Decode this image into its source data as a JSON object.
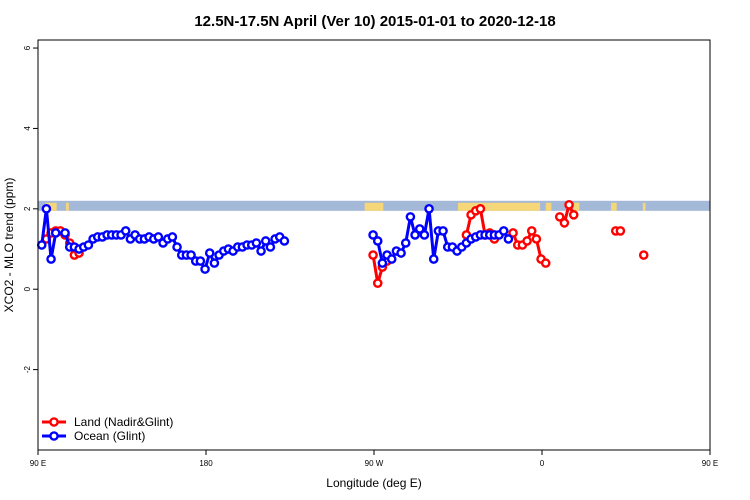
{
  "chart_data": {
    "type": "line",
    "title": "12.5N-17.5N April (Ver 10)   2015-01-01 to 2020-12-18",
    "xlabel": "Longitude (deg E)",
    "ylabel": "XCO2 - MLO trend (ppm)",
    "xlim": [
      90,
      450
    ],
    "ylim": [
      -4,
      6.2
    ],
    "x_ticks": [
      {
        "value": 90,
        "label": "90 E"
      },
      {
        "value": 180,
        "label": "180"
      },
      {
        "value": 270,
        "label": "90 W"
      },
      {
        "value": 360,
        "label": "0"
      },
      {
        "value": 450,
        "label": "90 E"
      },
      {
        "value": 540,
        "label": "180"
      }
    ],
    "y_ticks": [
      {
        "value": -2,
        "label": "-2"
      },
      {
        "value": 0,
        "label": "0"
      },
      {
        "value": 2,
        "label": "2"
      },
      {
        "value": 4,
        "label": "4"
      },
      {
        "value": 6,
        "label": "6"
      }
    ],
    "land_band": {
      "ymin": 1.95,
      "ymax": 2.2,
      "ocean_color": "#a4b8d8",
      "land_color": "#f5d77a"
    },
    "legend": {
      "position": "bottom-left"
    },
    "series": [
      {
        "name": "Land (Nadir&Glint)",
        "color": "#ff0000",
        "segments": [
          [
            [
              94.5,
              1.25
            ],
            [
              97,
              1.4
            ],
            [
              99.5,
              1.45
            ],
            [
              102,
              1.45
            ],
            [
              104.5,
              1.35
            ],
            [
              107,
              1.15
            ],
            [
              109.5,
              0.85
            ],
            [
              112,
              0.9
            ]
          ],
          [
            [
              269.5,
              0.85
            ],
            [
              272,
              0.15
            ],
            [
              274.5,
              0.55
            ],
            [
              277,
              0.7
            ]
          ],
          [
            [
              319.5,
              1.35
            ],
            [
              322,
              1.85
            ],
            [
              324.5,
              1.95
            ],
            [
              327,
              2.0
            ],
            [
              329.5,
              1.35
            ],
            [
              332,
              1.4
            ],
            [
              334.5,
              1.25
            ]
          ],
          [
            [
              344.5,
              1.4
            ],
            [
              347,
              1.1
            ],
            [
              349.5,
              1.1
            ],
            [
              352,
              1.2
            ],
            [
              354.5,
              1.45
            ],
            [
              357,
              1.25
            ],
            [
              359.5,
              0.75
            ],
            [
              362,
              0.65
            ]
          ],
          [
            [
              369.5,
              1.8
            ],
            [
              372,
              1.65
            ],
            [
              374.5,
              2.1
            ],
            [
              377,
              1.85
            ]
          ],
          [
            [
              399.5,
              1.45
            ],
            [
              402,
              1.45
            ]
          ],
          [
            [
              414.5,
              0.85
            ]
          ]
        ]
      },
      {
        "name": "Ocean (Glint)",
        "color": "#0000ff",
        "segments": [
          [
            [
              92,
              1.1
            ],
            [
              94.5,
              2.0
            ],
            [
              97,
              0.75
            ],
            [
              99.5,
              1.4
            ],
            [
              104.5,
              1.4
            ],
            [
              107,
              1.05
            ],
            [
              109.5,
              1.05
            ],
            [
              112,
              1.0
            ],
            [
              114.5,
              1.05
            ],
            [
              117,
              1.1
            ],
            [
              119.5,
              1.25
            ],
            [
              122,
              1.3
            ],
            [
              124.5,
              1.3
            ],
            [
              127,
              1.35
            ],
            [
              129.5,
              1.35
            ],
            [
              132,
              1.35
            ],
            [
              134.5,
              1.35
            ],
            [
              137,
              1.45
            ],
            [
              139.5,
              1.25
            ],
            [
              142,
              1.35
            ],
            [
              144.5,
              1.25
            ],
            [
              147,
              1.25
            ],
            [
              149.5,
              1.3
            ],
            [
              152,
              1.25
            ],
            [
              154.5,
              1.3
            ],
            [
              157,
              1.15
            ],
            [
              159.5,
              1.25
            ],
            [
              162,
              1.3
            ],
            [
              164.5,
              1.05
            ],
            [
              167,
              0.85
            ],
            [
              169.5,
              0.85
            ],
            [
              172,
              0.85
            ],
            [
              174.5,
              0.7
            ],
            [
              177,
              0.7
            ],
            [
              179.5,
              0.5
            ],
            [
              182,
              0.9
            ],
            [
              184.5,
              0.65
            ],
            [
              187,
              0.85
            ],
            [
              189.5,
              0.95
            ],
            [
              192,
              1.0
            ],
            [
              194.5,
              0.95
            ],
            [
              197,
              1.05
            ],
            [
              199.5,
              1.05
            ],
            [
              202,
              1.1
            ],
            [
              204.5,
              1.1
            ],
            [
              207,
              1.15
            ],
            [
              209.5,
              0.95
            ],
            [
              212,
              1.2
            ],
            [
              214.5,
              1.05
            ],
            [
              217,
              1.25
            ],
            [
              219.5,
              1.3
            ],
            [
              222,
              1.2
            ]
          ],
          [
            [
              269.5,
              1.35
            ],
            [
              272,
              1.2
            ],
            [
              274.5,
              0.65
            ],
            [
              277,
              0.85
            ],
            [
              279.5,
              0.75
            ],
            [
              282,
              0.95
            ],
            [
              284.5,
              0.9
            ],
            [
              287,
              1.15
            ],
            [
              289.5,
              1.8
            ],
            [
              292,
              1.35
            ],
            [
              294.5,
              1.5
            ],
            [
              297,
              1.35
            ],
            [
              299.5,
              2.0
            ],
            [
              302,
              0.75
            ],
            [
              304.5,
              1.45
            ],
            [
              307,
              1.45
            ],
            [
              309.5,
              1.05
            ],
            [
              312,
              1.05
            ],
            [
              314.5,
              0.95
            ],
            [
              317,
              1.05
            ],
            [
              319.5,
              1.15
            ],
            [
              322,
              1.25
            ],
            [
              324.5,
              1.3
            ],
            [
              327,
              1.35
            ],
            [
              329.5,
              1.35
            ],
            [
              332,
              1.35
            ],
            [
              334.5,
              1.35
            ],
            [
              337,
              1.35
            ],
            [
              339.5,
              1.45
            ],
            [
              342,
              1.25
            ]
          ]
        ]
      }
    ]
  }
}
